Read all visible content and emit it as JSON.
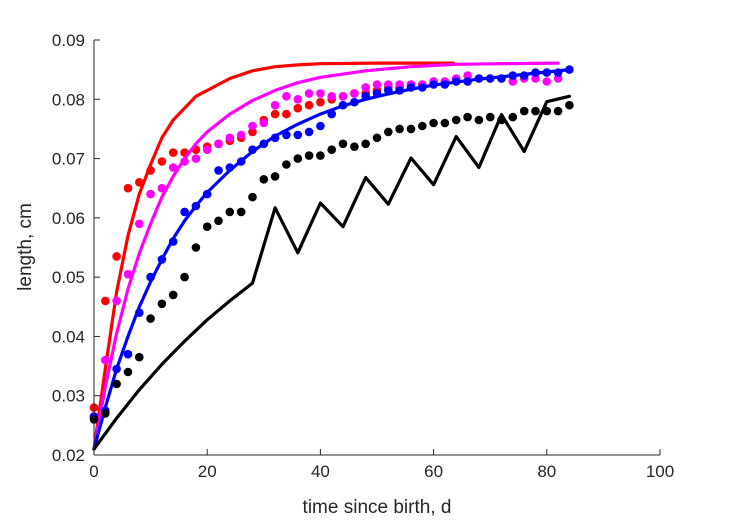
{
  "chart_data": {
    "type": "scatter",
    "title": "",
    "xlabel": "time since birth, d",
    "ylabel": "length, cm",
    "xlim": [
      0,
      100
    ],
    "ylim": [
      0.02,
      0.09
    ],
    "xticks": [
      "0",
      "20",
      "40",
      "60",
      "80",
      "100"
    ],
    "yticks": [
      "0.02",
      "0.03",
      "0.04",
      "0.05",
      "0.06",
      "0.07",
      "0.08",
      "0.09"
    ],
    "grid": false,
    "legend": "none",
    "series": [
      {
        "color": "#ff0000",
        "points": [
          [
            0,
            0.028
          ],
          [
            2,
            0.046
          ],
          [
            4,
            0.0535
          ],
          [
            6,
            0.065
          ],
          [
            8,
            0.066
          ],
          [
            10,
            0.068
          ],
          [
            12,
            0.0695
          ],
          [
            14,
            0.071
          ],
          [
            16,
            0.071
          ],
          [
            18,
            0.0715
          ],
          [
            20,
            0.072
          ],
          [
            22,
            0.0725
          ],
          [
            24,
            0.073
          ],
          [
            26,
            0.0735
          ],
          [
            28,
            0.0745
          ],
          [
            30,
            0.0765
          ],
          [
            32,
            0.0775
          ],
          [
            34,
            0.0775
          ],
          [
            36,
            0.0785
          ],
          [
            38,
            0.079
          ],
          [
            40,
            0.0795
          ],
          [
            42,
            0.08
          ],
          [
            44,
            0.0805
          ],
          [
            46,
            0.081
          ],
          [
            48,
            0.081
          ],
          [
            50,
            0.0815
          ],
          [
            52,
            0.082
          ],
          [
            54,
            0.082
          ],
          [
            56,
            0.0825
          ],
          [
            58,
            0.0825
          ],
          [
            60,
            0.083
          ],
          [
            62,
            0.083
          ]
        ],
        "curve": [
          [
            0,
            0.021
          ],
          [
            2,
            0.0345
          ],
          [
            4,
            0.0475
          ],
          [
            6,
            0.057
          ],
          [
            8,
            0.064
          ],
          [
            10,
            0.069
          ],
          [
            12,
            0.0735
          ],
          [
            14,
            0.0765
          ],
          [
            16,
            0.0785
          ],
          [
            18,
            0.0805
          ],
          [
            20,
            0.0815
          ],
          [
            24,
            0.0835
          ],
          [
            28,
            0.0848
          ],
          [
            32,
            0.0855
          ],
          [
            36,
            0.0858
          ],
          [
            40,
            0.086
          ],
          [
            50,
            0.0861
          ],
          [
            63.5,
            0.0861
          ]
        ]
      },
      {
        "color": "#ff00ff",
        "points": [
          [
            0,
            0.0265
          ],
          [
            2,
            0.036
          ],
          [
            4,
            0.046
          ],
          [
            6,
            0.0505
          ],
          [
            8,
            0.059
          ],
          [
            10,
            0.064
          ],
          [
            12,
            0.065
          ],
          [
            14,
            0.0685
          ],
          [
            16,
            0.0695
          ],
          [
            18,
            0.07
          ],
          [
            20,
            0.0715
          ],
          [
            22,
            0.0725
          ],
          [
            24,
            0.0735
          ],
          [
            26,
            0.074
          ],
          [
            28,
            0.0755
          ],
          [
            30,
            0.076
          ],
          [
            32,
            0.079
          ],
          [
            34,
            0.0805
          ],
          [
            36,
            0.08
          ],
          [
            38,
            0.081
          ],
          [
            40,
            0.081
          ],
          [
            42,
            0.0805
          ],
          [
            44,
            0.0805
          ],
          [
            46,
            0.081
          ],
          [
            48,
            0.082
          ],
          [
            50,
            0.0825
          ],
          [
            52,
            0.0825
          ],
          [
            54,
            0.0825
          ],
          [
            56,
            0.0825
          ],
          [
            58,
            0.0825
          ],
          [
            60,
            0.083
          ],
          [
            62,
            0.083
          ],
          [
            64,
            0.0835
          ],
          [
            66,
            0.084
          ],
          [
            68,
            0.0835
          ],
          [
            70,
            0.0835
          ],
          [
            72,
            0.0835
          ],
          [
            74,
            0.083
          ],
          [
            76,
            0.0835
          ],
          [
            78,
            0.0835
          ],
          [
            80,
            0.083
          ],
          [
            82,
            0.0835
          ]
        ],
        "curve": [
          [
            0,
            0.021
          ],
          [
            2,
            0.0315
          ],
          [
            4,
            0.0405
          ],
          [
            6,
            0.048
          ],
          [
            8,
            0.054
          ],
          [
            10,
            0.059
          ],
          [
            12,
            0.0635
          ],
          [
            14,
            0.067
          ],
          [
            16,
            0.07
          ],
          [
            18,
            0.0725
          ],
          [
            20,
            0.0745
          ],
          [
            24,
            0.0775
          ],
          [
            28,
            0.0798
          ],
          [
            32,
            0.0815
          ],
          [
            36,
            0.0828
          ],
          [
            40,
            0.0837
          ],
          [
            48,
            0.0848
          ],
          [
            56,
            0.0855
          ],
          [
            64,
            0.0859
          ],
          [
            72,
            0.086
          ],
          [
            82,
            0.0861
          ]
        ]
      },
      {
        "color": "#0000ff",
        "points": [
          [
            0,
            0.0265
          ],
          [
            2,
            0.0275
          ],
          [
            4,
            0.0345
          ],
          [
            6,
            0.037
          ],
          [
            8,
            0.044
          ],
          [
            10,
            0.05
          ],
          [
            12,
            0.053
          ],
          [
            14,
            0.056
          ],
          [
            16,
            0.061
          ],
          [
            18,
            0.062
          ],
          [
            20,
            0.064
          ],
          [
            22,
            0.068
          ],
          [
            24,
            0.0685
          ],
          [
            26,
            0.0695
          ],
          [
            28,
            0.0715
          ],
          [
            30,
            0.0725
          ],
          [
            32,
            0.0735
          ],
          [
            34,
            0.074
          ],
          [
            36,
            0.074
          ],
          [
            38,
            0.0745
          ],
          [
            40,
            0.0755
          ],
          [
            42,
            0.0775
          ],
          [
            44,
            0.079
          ],
          [
            46,
            0.0795
          ],
          [
            48,
            0.0805
          ],
          [
            50,
            0.081
          ],
          [
            52,
            0.0815
          ],
          [
            54,
            0.0815
          ],
          [
            56,
            0.082
          ],
          [
            58,
            0.082
          ],
          [
            60,
            0.0825
          ],
          [
            62,
            0.0825
          ],
          [
            64,
            0.083
          ],
          [
            66,
            0.083
          ],
          [
            68,
            0.0835
          ],
          [
            70,
            0.0835
          ],
          [
            72,
            0.0835
          ],
          [
            74,
            0.084
          ],
          [
            76,
            0.084
          ],
          [
            78,
            0.0845
          ],
          [
            80,
            0.0845
          ],
          [
            82,
            0.0845
          ],
          [
            84,
            0.085
          ]
        ],
        "curve": [
          [
            0,
            0.021
          ],
          [
            2,
            0.028
          ],
          [
            4,
            0.0345
          ],
          [
            6,
            0.04
          ],
          [
            8,
            0.045
          ],
          [
            10,
            0.0492
          ],
          [
            12,
            0.053
          ],
          [
            14,
            0.0565
          ],
          [
            16,
            0.0595
          ],
          [
            18,
            0.062
          ],
          [
            20,
            0.0643
          ],
          [
            24,
            0.068
          ],
          [
            28,
            0.0712
          ],
          [
            32,
            0.0738
          ],
          [
            36,
            0.0758
          ],
          [
            40,
            0.0775
          ],
          [
            44,
            0.0789
          ],
          [
            48,
            0.08
          ],
          [
            52,
            0.0809
          ],
          [
            56,
            0.0817
          ],
          [
            60,
            0.0824
          ],
          [
            64,
            0.0829
          ],
          [
            68,
            0.0834
          ],
          [
            72,
            0.0838
          ],
          [
            76,
            0.0842
          ],
          [
            80,
            0.0846
          ],
          [
            84,
            0.085
          ]
        ]
      },
      {
        "color": "#000000",
        "points": [
          [
            0,
            0.026
          ],
          [
            2,
            0.027
          ],
          [
            4,
            0.032
          ],
          [
            6,
            0.034
          ],
          [
            8,
            0.0365
          ],
          [
            10,
            0.043
          ],
          [
            12,
            0.0455
          ],
          [
            14,
            0.047
          ],
          [
            16,
            0.05
          ],
          [
            18,
            0.055
          ],
          [
            20,
            0.0585
          ],
          [
            22,
            0.0595
          ],
          [
            24,
            0.061
          ],
          [
            26,
            0.061
          ],
          [
            28,
            0.0635
          ],
          [
            30,
            0.0665
          ],
          [
            32,
            0.067
          ],
          [
            34,
            0.069
          ],
          [
            36,
            0.07
          ],
          [
            38,
            0.0705
          ],
          [
            40,
            0.0705
          ],
          [
            42,
            0.0715
          ],
          [
            44,
            0.0725
          ],
          [
            46,
            0.072
          ],
          [
            48,
            0.0725
          ],
          [
            50,
            0.0735
          ],
          [
            52,
            0.0745
          ],
          [
            54,
            0.075
          ],
          [
            56,
            0.075
          ],
          [
            58,
            0.0755
          ],
          [
            60,
            0.076
          ],
          [
            62,
            0.076
          ],
          [
            64,
            0.0765
          ],
          [
            66,
            0.077
          ],
          [
            68,
            0.0765
          ],
          [
            70,
            0.077
          ],
          [
            72,
            0.0765
          ],
          [
            74,
            0.077
          ],
          [
            76,
            0.078
          ],
          [
            78,
            0.078
          ],
          [
            80,
            0.078
          ],
          [
            82,
            0.078
          ],
          [
            84,
            0.079
          ]
        ],
        "curve": [
          [
            0,
            0.021
          ],
          [
            4,
            0.0262
          ],
          [
            8,
            0.031
          ],
          [
            12,
            0.0353
          ],
          [
            16,
            0.0392
          ],
          [
            20,
            0.0428
          ],
          [
            24,
            0.046
          ],
          [
            28,
            0.049
          ],
          [
            32,
            0.0617
          ],
          [
            36,
            0.0541
          ],
          [
            40,
            0.0625
          ],
          [
            44,
            0.0585
          ],
          [
            48,
            0.0668
          ],
          [
            52,
            0.0623
          ],
          [
            56,
            0.0701
          ],
          [
            60,
            0.0656
          ],
          [
            64,
            0.0737
          ],
          [
            68,
            0.0685
          ],
          [
            72,
            0.0774
          ],
          [
            76,
            0.0712
          ],
          [
            80,
            0.0796
          ],
          [
            84,
            0.0805
          ]
        ]
      }
    ]
  }
}
